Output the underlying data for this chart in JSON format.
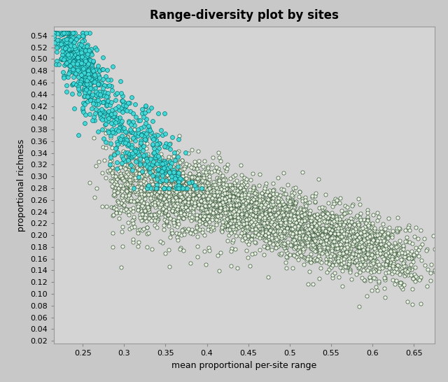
{
  "title": "Range-diversity plot by sites",
  "xlabel": "mean proportional per-site range",
  "ylabel": "proportional richness",
  "xlim": [
    0.215,
    0.675
  ],
  "ylim": [
    0.015,
    0.555
  ],
  "xticks": [
    0.25,
    0.3,
    0.35,
    0.4,
    0.45,
    0.5,
    0.55,
    0.6,
    0.65
  ],
  "yticks": [
    0.02,
    0.04,
    0.06,
    0.08,
    0.1,
    0.12,
    0.14,
    0.16,
    0.18,
    0.2,
    0.22,
    0.24,
    0.26,
    0.28,
    0.3,
    0.32,
    0.34,
    0.36,
    0.38,
    0.4,
    0.42,
    0.44,
    0.46,
    0.48,
    0.5,
    0.52,
    0.54
  ],
  "bg_color": "#d4d4d4",
  "outer_bg": "#c8c8c8",
  "hotspot_color": "#40d8d8",
  "hotspot_edge_color": "#007070",
  "total_face_color": "#eef5e8",
  "total_edge_color": "#2a4a2a",
  "marker_size_hotspot": 18,
  "marker_size_total": 14,
  "title_fontsize": 12,
  "label_fontsize": 9,
  "tick_fontsize": 8
}
